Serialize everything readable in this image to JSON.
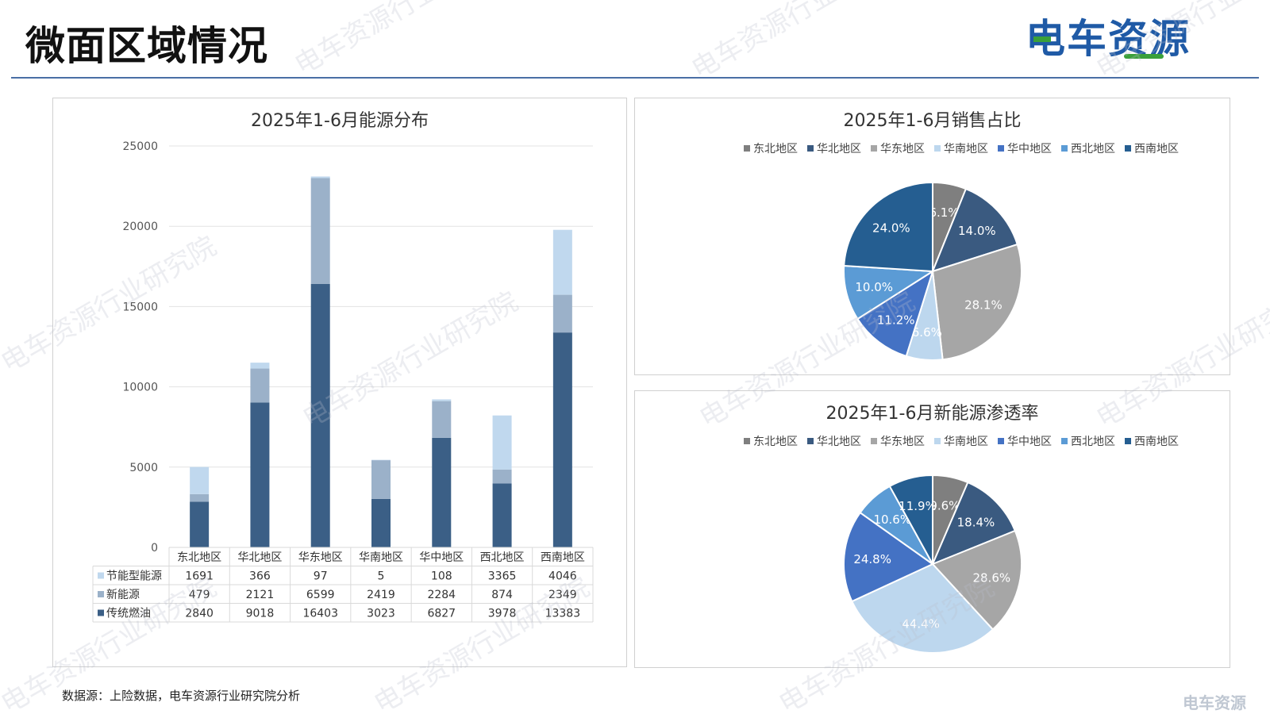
{
  "page": {
    "title": "微面区域情况",
    "brand": "电车资源",
    "source_note": "数据源：上险数据，电车资源行业研究院分析",
    "watermark_text": "电车资源行业研究院",
    "corner_logo": "电车资源"
  },
  "colors": {
    "rule": "#4a6fa5",
    "traditional": "#3b5f86",
    "new_energy": "#9bb1c9",
    "energy_saving": "#c0d8ee",
    "pie": [
      "#7f7f7f",
      "#3a5a80",
      "#a6a6a6",
      "#bdd7ee",
      "#4472c4",
      "#5b9bd5",
      "#255e91"
    ],
    "brand_blue": "#1f5aa6",
    "brand_green": "#3aa03a"
  },
  "chart_data": [
    {
      "type": "bar",
      "stacked": true,
      "title": "2025年1-6月能源分布",
      "categories": [
        "东北地区",
        "华北地区",
        "华东地区",
        "华南地区",
        "华中地区",
        "西北地区",
        "西南地区"
      ],
      "series": [
        {
          "name": "节能型能源",
          "values": [
            1691,
            366,
            97,
            5,
            108,
            3365,
            4046
          ]
        },
        {
          "name": "新能源",
          "values": [
            479,
            2121,
            6599,
            2419,
            2284,
            874,
            2349
          ]
        },
        {
          "name": "传统燃油",
          "values": [
            2840,
            9018,
            16403,
            3023,
            6827,
            3978,
            13383
          ]
        }
      ],
      "ylim": [
        0,
        25000
      ],
      "yticks": [
        0,
        5000,
        10000,
        15000,
        20000,
        25000
      ],
      "grid": true,
      "data_table": true
    },
    {
      "type": "pie",
      "title": "2025年1-6月销售占比",
      "labels": [
        "东北地区",
        "华北地区",
        "华东地区",
        "华南地区",
        "华中地区",
        "西北地区",
        "西南地区"
      ],
      "values": [
        6.1,
        14.0,
        28.1,
        6.6,
        11.2,
        10.0,
        24.0
      ],
      "value_labels": [
        "6.1%",
        "14.0%",
        "28.1%",
        "6.6%",
        "11.2%",
        "10.0%",
        "24.0%"
      ],
      "legend": "top"
    },
    {
      "type": "pie",
      "title": "2025年1-6月新能源渗透率",
      "labels": [
        "东北地区",
        "华北地区",
        "华东地区",
        "华南地区",
        "华中地区",
        "西北地区",
        "西南地区"
      ],
      "values": [
        9.6,
        18.4,
        28.6,
        44.4,
        24.8,
        10.6,
        11.9
      ],
      "value_labels": [
        "9.6%",
        "18.4%",
        "28.6%",
        "44.4%",
        "24.8%",
        "10.6%",
        "11.9%"
      ],
      "legend": "top"
    }
  ]
}
